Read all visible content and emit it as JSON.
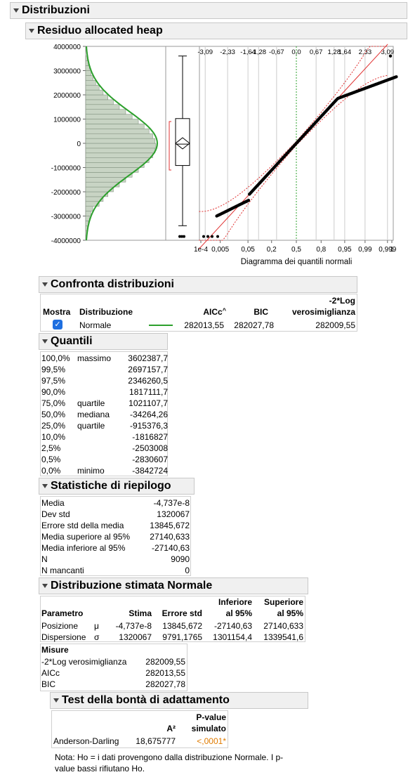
{
  "top": {
    "title": "Distribuzioni"
  },
  "variable": {
    "title": "Residuo allocated heap"
  },
  "hist": {
    "y_ticks": [
      "4000000",
      "3000000",
      "2000000",
      "1000000",
      "0",
      "-1000000",
      "-2000000",
      "-3000000",
      "-4000000"
    ],
    "y_values": [
      4000000,
      3000000,
      2000000,
      1000000,
      0,
      -1000000,
      -2000000,
      -3000000,
      -4000000
    ]
  },
  "qq": {
    "top_ticks": [
      "-3,09",
      "-2,33",
      "-1,64",
      "-1,28",
      "-0,67",
      "0,0",
      "0,67",
      "1,28",
      "1,64",
      "2,33",
      "3,09"
    ],
    "bottom_ticks": [
      "1e-4",
      "0,005",
      "0,05",
      "0,2",
      "0,5",
      "0,8",
      "0,95",
      "0,99",
      "0,999",
      "1"
    ],
    "xlabel": "Diagramma dei quantili normali"
  },
  "compare": {
    "title": "Confronta distribuzioni",
    "col_show": "Mostra",
    "col_dist": "Distribuzione",
    "col_aicc": "AICc",
    "col_bic": "BIC",
    "col_loglik_1": "-2*Log",
    "col_loglik_2": "verosimiglianza",
    "row": {
      "name": "Normale",
      "aicc": "282013,55",
      "bic": "282027,78",
      "loglik": "282009,55"
    }
  },
  "quantiles": {
    "title": "Quantili",
    "rows": [
      {
        "p": "100,0%",
        "label": "massimo",
        "v": "3602387,7"
      },
      {
        "p": "99,5%",
        "label": "",
        "v": "2697157,7"
      },
      {
        "p": "97,5%",
        "label": "",
        "v": "2346260,5"
      },
      {
        "p": "90,0%",
        "label": "",
        "v": "1817111,7"
      },
      {
        "p": "75,0%",
        "label": "quartile",
        "v": "1021107,7"
      },
      {
        "p": "50,0%",
        "label": "mediana",
        "v": "-34264,26"
      },
      {
        "p": "25,0%",
        "label": "quartile",
        "v": "-915376,3"
      },
      {
        "p": "10,0%",
        "label": "",
        "v": "-1816827"
      },
      {
        "p": "2,5%",
        "label": "",
        "v": "-2503008"
      },
      {
        "p": "0,5%",
        "label": "",
        "v": "-2830607"
      },
      {
        "p": "0,0%",
        "label": "minimo",
        "v": "-3842724"
      }
    ]
  },
  "summary": {
    "title": "Statistiche di riepilogo",
    "rows": [
      {
        "k": "Media",
        "v": "-4,737e-8"
      },
      {
        "k": "Dev std",
        "v": "1320067"
      },
      {
        "k": "Errore std della media",
        "v": "13845,672"
      },
      {
        "k": "Media superiore al 95%",
        "v": "27140,633"
      },
      {
        "k": "Media inferiore al 95%",
        "v": "-27140,63"
      },
      {
        "k": "N",
        "v": "9090"
      },
      {
        "k": "N mancanti",
        "v": "0"
      }
    ]
  },
  "fitted": {
    "title": "Distribuzione stimata Normale",
    "h_param": "Parametro",
    "h_est": "Stima",
    "h_se": "Errore std",
    "h_lo_1": "Inferiore",
    "h_lo_2": "al 95%",
    "h_hi_1": "Superiore",
    "h_hi_2": "al 95%",
    "rows": [
      {
        "name": "Posizione",
        "sym": "μ",
        "est": "-4,737e-8",
        "se": "13845,672",
        "lo": "-27140,63",
        "hi": "27140,633"
      },
      {
        "name": "Dispersione",
        "sym": "σ",
        "est": "1320067",
        "se": "9791,1765",
        "lo": "1301154,4",
        "hi": "1339541,6"
      }
    ],
    "measures_title": "Misure",
    "measures": [
      {
        "k": "-2*Log verosimiglianza",
        "v": "282009,55"
      },
      {
        "k": "AICc",
        "v": "282013,55"
      },
      {
        "k": "BIC",
        "v": "282027,78"
      }
    ]
  },
  "gof": {
    "title": "Test della bontà di adattamento",
    "h_a2": "A²",
    "h_p_1": "P-value",
    "h_p_2": "simulato",
    "row": {
      "name": "Anderson-Darling",
      "a2": "18,675777",
      "p": "<,0001*"
    },
    "note_1": "Nota: Ho = i dati provengono dalla distribuzione Normale. I p-",
    "note_2": "value bassi rifiutano Ho."
  },
  "colors": {
    "green": "#2ca02c",
    "red": "#e03030",
    "bar": "#c8d4c4",
    "orange": "#e07b00"
  }
}
